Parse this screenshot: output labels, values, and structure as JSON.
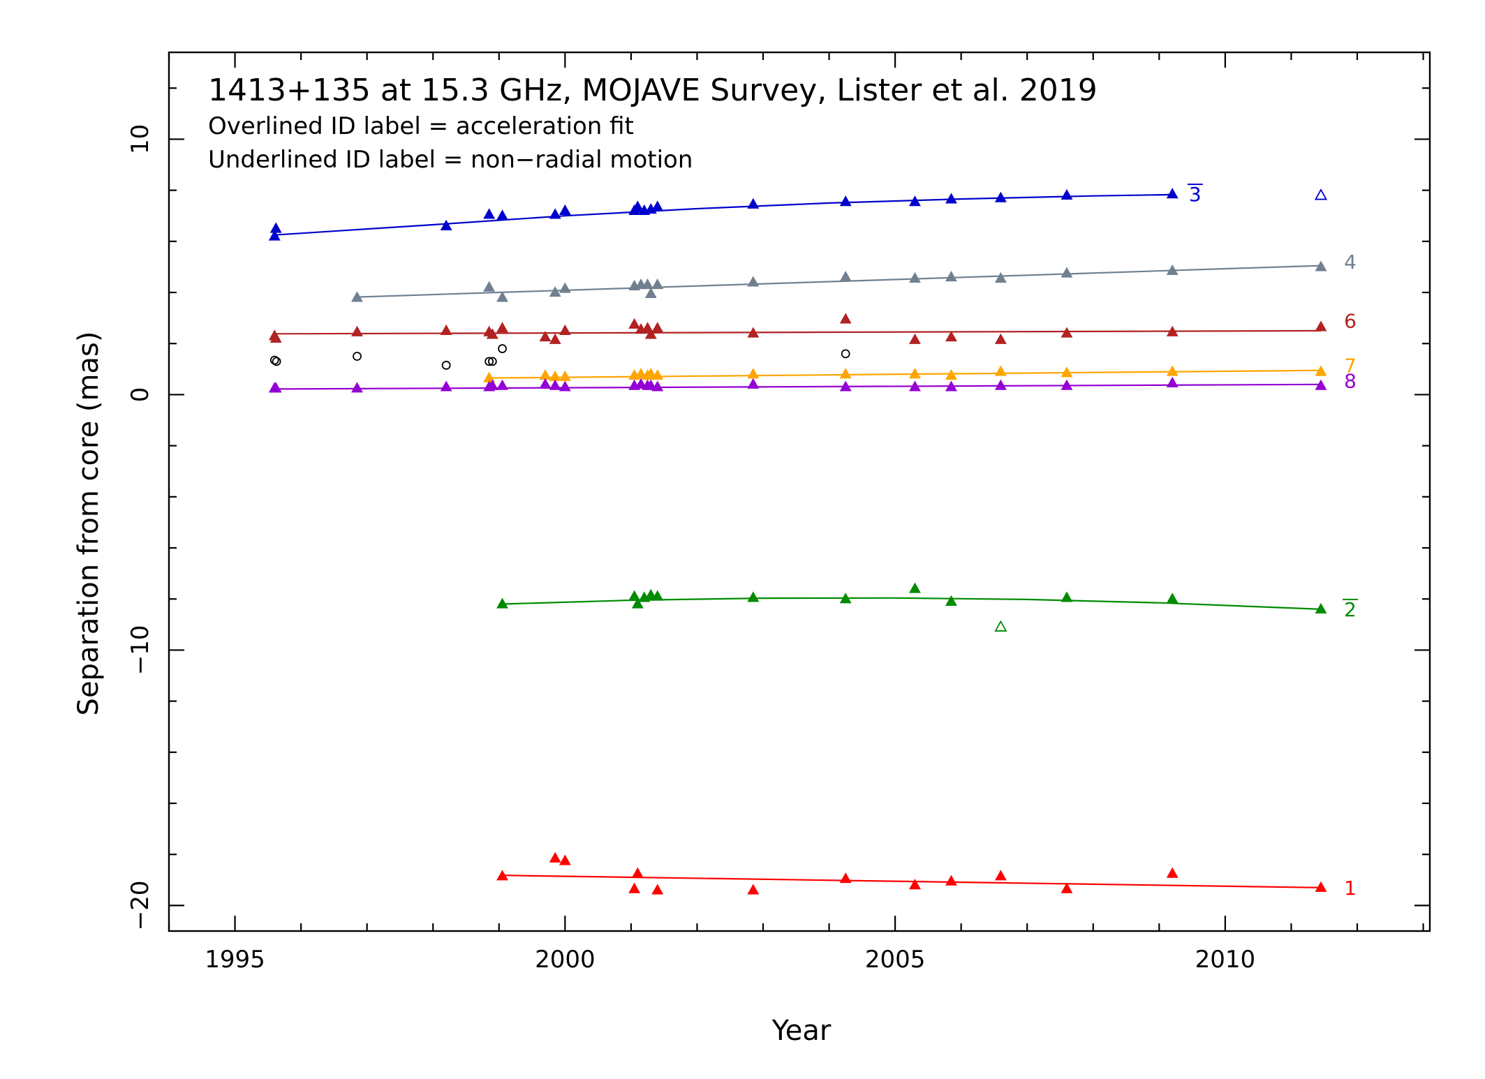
{
  "chart_data": {
    "type": "scatter",
    "title": "1413+135 at 15.3 GHz, MOJAVE Survey, Lister et al. 2019",
    "subtitle_lines": [
      "Overlined ID label = acceleration fit",
      "Underlined ID label = non−radial motion"
    ],
    "xlabel": "Year",
    "ylabel": "Separation from core (mas)",
    "xlim": [
      1994.0,
      2013.1
    ],
    "ylim": [
      -21.0,
      13.4
    ],
    "xticks_major": [
      1995,
      2000,
      2005,
      2010
    ],
    "xtick_labels": [
      "1995",
      "2000",
      "2005",
      "2010"
    ],
    "yticks_major": [
      -20,
      -10,
      0,
      10
    ],
    "ytick_labels": [
      "−20",
      "−10",
      "0",
      "10"
    ],
    "grid": false,
    "series": [
      {
        "name": "3",
        "color": "#0000cc",
        "overline": true,
        "points": [
          [
            1995.6,
            6.2
          ],
          [
            1995.62,
            6.5
          ],
          [
            1998.2,
            6.6
          ],
          [
            1998.85,
            7.05
          ],
          [
            1999.05,
            7.0
          ],
          [
            1999.85,
            7.05
          ],
          [
            2000.0,
            7.2
          ],
          [
            2001.05,
            7.2
          ],
          [
            2001.1,
            7.35
          ],
          [
            2001.2,
            7.2
          ],
          [
            2001.3,
            7.25
          ],
          [
            2001.4,
            7.35
          ],
          [
            2002.85,
            7.45
          ],
          [
            2004.25,
            7.55
          ],
          [
            2005.3,
            7.55
          ],
          [
            2005.85,
            7.65
          ],
          [
            2006.6,
            7.7
          ],
          [
            2007.6,
            7.8
          ],
          [
            2009.2,
            7.85
          ]
        ],
        "open_points": [
          [
            2011.45,
            7.8
          ]
        ],
        "fit": [
          [
            1995.6,
            6.25
          ],
          [
            1998.0,
            6.65
          ],
          [
            2000.0,
            7.0
          ],
          [
            2002.0,
            7.28
          ],
          [
            2004.0,
            7.5
          ],
          [
            2006.0,
            7.66
          ],
          [
            2008.0,
            7.78
          ],
          [
            2009.2,
            7.83
          ]
        ]
      },
      {
        "name": "4",
        "color": "#708090",
        "overline": false,
        "points": [
          [
            1996.85,
            3.8
          ],
          [
            1998.85,
            4.2
          ],
          [
            1999.05,
            3.8
          ],
          [
            1999.85,
            4.0
          ],
          [
            2000.0,
            4.15
          ],
          [
            2001.05,
            4.25
          ],
          [
            2001.15,
            4.3
          ],
          [
            2001.25,
            4.3
          ],
          [
            2001.3,
            3.95
          ],
          [
            2001.4,
            4.3
          ],
          [
            2002.85,
            4.4
          ],
          [
            2004.25,
            4.6
          ],
          [
            2005.3,
            4.55
          ],
          [
            2005.85,
            4.6
          ],
          [
            2006.6,
            4.55
          ],
          [
            2007.6,
            4.75
          ],
          [
            2009.2,
            4.85
          ],
          [
            2011.45,
            5.0
          ]
        ],
        "open_points": [],
        "fit": [
          [
            1996.85,
            3.82
          ],
          [
            2011.45,
            5.05
          ]
        ]
      },
      {
        "name": "6",
        "color": "#b22222",
        "overline": false,
        "points": [
          [
            1995.6,
            2.3
          ],
          [
            1995.62,
            2.2
          ],
          [
            1996.85,
            2.45
          ],
          [
            1998.2,
            2.5
          ],
          [
            1998.85,
            2.45
          ],
          [
            1998.9,
            2.35
          ],
          [
            1999.05,
            2.6
          ],
          [
            1999.7,
            2.25
          ],
          [
            1999.85,
            2.15
          ],
          [
            2000.0,
            2.5
          ],
          [
            2001.05,
            2.75
          ],
          [
            2001.15,
            2.55
          ],
          [
            2001.25,
            2.6
          ],
          [
            2001.3,
            2.35
          ],
          [
            2001.4,
            2.6
          ],
          [
            2002.85,
            2.4
          ],
          [
            2004.25,
            2.95
          ],
          [
            2005.3,
            2.15
          ],
          [
            2005.85,
            2.25
          ],
          [
            2006.6,
            2.15
          ],
          [
            2007.6,
            2.4
          ],
          [
            2009.2,
            2.45
          ],
          [
            2011.45,
            2.65
          ]
        ],
        "open_points": [],
        "fit": [
          [
            1995.6,
            2.38
          ],
          [
            2011.45,
            2.5
          ]
        ]
      },
      {
        "name": "7",
        "color": "#ffa500",
        "overline": false,
        "points": [
          [
            1998.85,
            0.65
          ],
          [
            1999.7,
            0.75
          ],
          [
            1999.85,
            0.7
          ],
          [
            2000.0,
            0.7
          ],
          [
            2001.05,
            0.75
          ],
          [
            2001.15,
            0.8
          ],
          [
            2001.25,
            0.75
          ],
          [
            2001.3,
            0.8
          ],
          [
            2001.4,
            0.75
          ],
          [
            2002.85,
            0.8
          ],
          [
            2004.25,
            0.8
          ],
          [
            2005.3,
            0.8
          ],
          [
            2005.85,
            0.75
          ],
          [
            2006.6,
            0.9
          ],
          [
            2007.6,
            0.85
          ],
          [
            2009.2,
            0.9
          ],
          [
            2011.45,
            0.9
          ]
        ],
        "open_points": [],
        "fit": [
          [
            1998.85,
            0.65
          ],
          [
            2011.45,
            0.95
          ]
        ]
      },
      {
        "name": "8",
        "color": "#9400d3",
        "overline": false,
        "points": [
          [
            1995.6,
            0.25
          ],
          [
            1995.62,
            0.25
          ],
          [
            1996.85,
            0.25
          ],
          [
            1998.2,
            0.3
          ],
          [
            1998.85,
            0.3
          ],
          [
            1998.9,
            0.35
          ],
          [
            1999.05,
            0.35
          ],
          [
            1999.7,
            0.4
          ],
          [
            1999.85,
            0.35
          ],
          [
            2000.0,
            0.3
          ],
          [
            2001.05,
            0.35
          ],
          [
            2001.15,
            0.4
          ],
          [
            2001.25,
            0.35
          ],
          [
            2001.3,
            0.35
          ],
          [
            2001.4,
            0.3
          ],
          [
            2002.85,
            0.4
          ],
          [
            2004.25,
            0.3
          ],
          [
            2005.3,
            0.3
          ],
          [
            2005.85,
            0.3
          ],
          [
            2006.6,
            0.35
          ],
          [
            2007.6,
            0.35
          ],
          [
            2009.2,
            0.45
          ],
          [
            2011.45,
            0.35
          ]
        ],
        "open_points": [],
        "fit": [
          [
            1995.6,
            0.22
          ],
          [
            2011.45,
            0.4
          ]
        ]
      },
      {
        "name": "2",
        "color": "#008b00",
        "overline": true,
        "points": [
          [
            1999.05,
            -8.2
          ],
          [
            2001.05,
            -7.9
          ],
          [
            2001.1,
            -8.2
          ],
          [
            2001.2,
            -7.95
          ],
          [
            2001.3,
            -7.85
          ],
          [
            2001.4,
            -7.9
          ],
          [
            2002.85,
            -7.95
          ],
          [
            2004.25,
            -8.0
          ],
          [
            2005.3,
            -7.6
          ],
          [
            2005.85,
            -8.1
          ],
          [
            2007.6,
            -7.95
          ],
          [
            2009.2,
            -8.0
          ],
          [
            2011.45,
            -8.4
          ]
        ],
        "open_points": [
          [
            2006.6,
            -9.1
          ]
        ],
        "fit": [
          [
            1999.05,
            -8.2
          ],
          [
            2001.0,
            -8.05
          ],
          [
            2003.0,
            -7.97
          ],
          [
            2005.0,
            -7.96
          ],
          [
            2007.0,
            -8.02
          ],
          [
            2009.0,
            -8.15
          ],
          [
            2011.45,
            -8.4
          ]
        ]
      },
      {
        "name": "1",
        "color": "#ff0000",
        "overline": false,
        "points": [
          [
            1999.05,
            -18.85
          ],
          [
            1999.85,
            -18.15
          ],
          [
            2000.0,
            -18.25
          ],
          [
            2001.05,
            -19.35
          ],
          [
            2001.1,
            -18.75
          ],
          [
            2001.4,
            -19.4
          ],
          [
            2002.85,
            -19.4
          ],
          [
            2004.25,
            -18.95
          ],
          [
            2005.3,
            -19.2
          ],
          [
            2005.85,
            -19.05
          ],
          [
            2006.6,
            -18.85
          ],
          [
            2007.6,
            -19.35
          ],
          [
            2009.2,
            -18.75
          ],
          [
            2011.45,
            -19.3
          ]
        ],
        "open_points": [],
        "fit": [
          [
            1999.05,
            -18.82
          ],
          [
            2011.45,
            -19.3
          ]
        ]
      },
      {
        "name": "",
        "color": "#000000",
        "overline": false,
        "marker": "circle",
        "points": [
          [
            1995.6,
            1.35
          ],
          [
            1995.63,
            1.3
          ],
          [
            1996.85,
            1.5
          ],
          [
            1998.2,
            1.15
          ],
          [
            1998.85,
            1.3
          ],
          [
            1998.9,
            1.3
          ],
          [
            1999.05,
            1.8
          ],
          [
            2004.25,
            1.6
          ]
        ],
        "open_points": [],
        "fit": []
      }
    ]
  }
}
